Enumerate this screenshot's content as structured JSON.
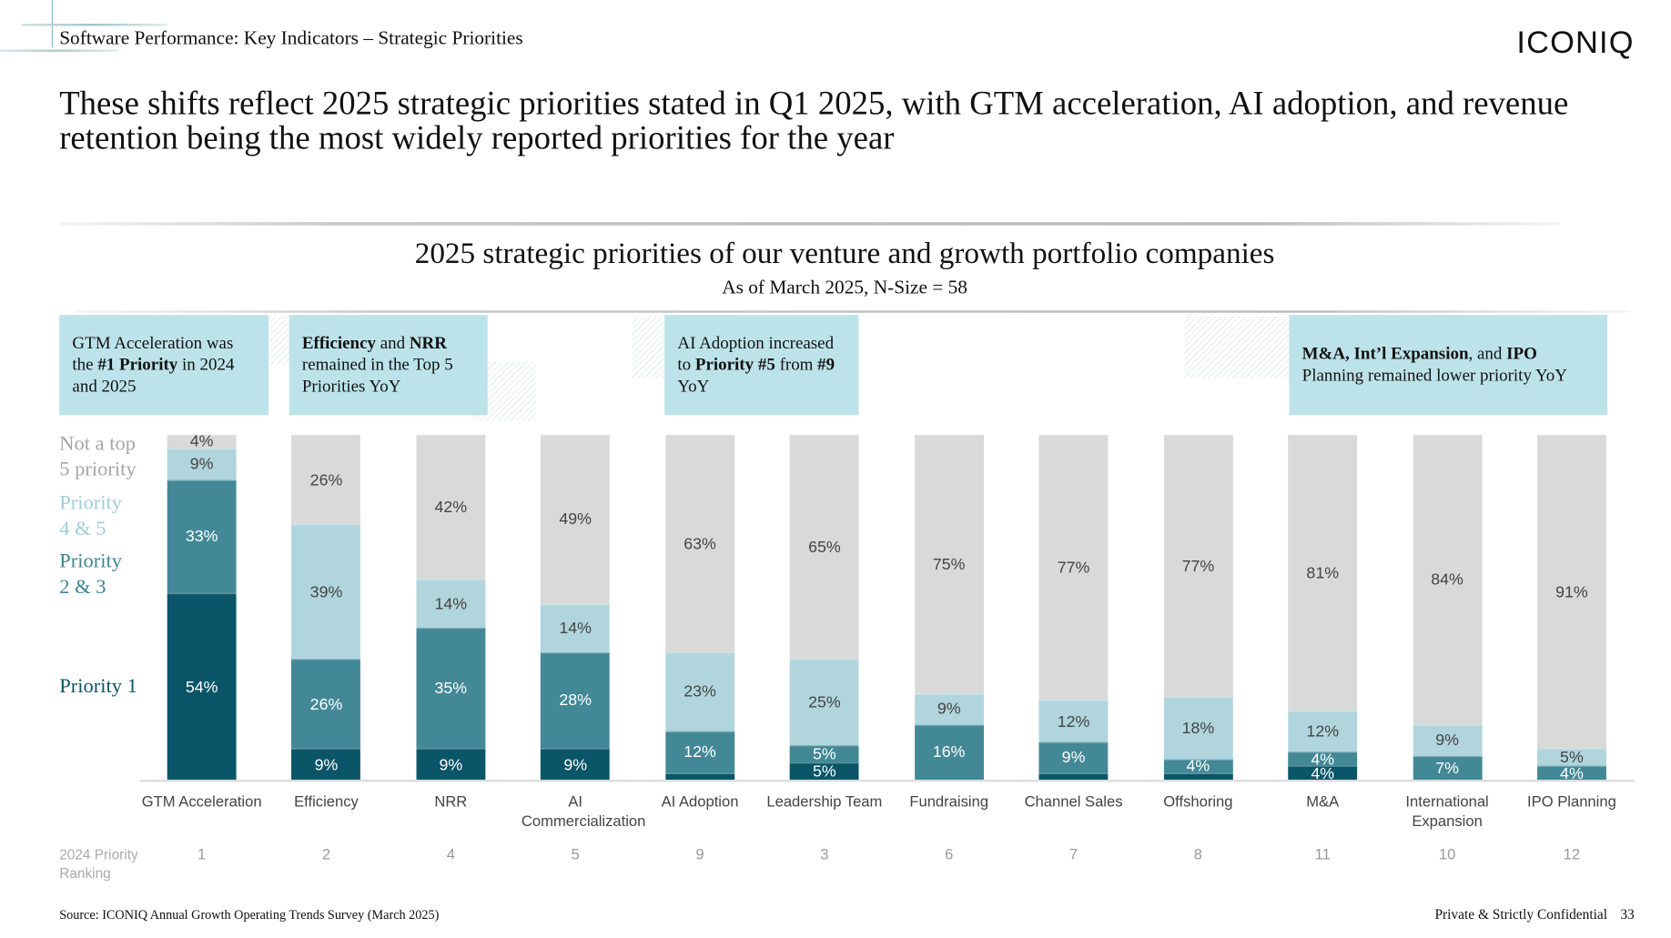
{
  "header": {
    "section": "Software Performance: Key Indicators – Strategic Priorities",
    "logo": "ICONIQ"
  },
  "headline": "These shifts reflect 2025 strategic priorities stated in Q1 2025, with GTM acceleration, AI adoption, and revenue retention being the most widely reported priorities for the year",
  "callouts": [
    {
      "html": "GTM Acceleration was the <b>#1 Priority</b> in 2024 and 2025"
    },
    {
      "html": "<b>Efficiency</b> and <b>NRR</b> remained in the Top 5 Priorities YoY"
    },
    {
      "html": "AI Adoption increased to <b>Priority #5</b> from <b>#9</b> YoY"
    },
    {
      "html": "<b>M&amp;A, Int’l Expansion</b>, and <b>IPO</b> Planning remained lower priority YoY"
    }
  ],
  "legend": {
    "not_top5": "Not a top 5 priority",
    "p45": "Priority 4 & 5",
    "p23": "Priority 2 & 3",
    "p1": "Priority 1"
  },
  "ranking_label": "2024 Priority Ranking",
  "footer": {
    "source": "Source: ICONIQ Annual Growth Operating Trends Survey (March 2025)",
    "confidential": "Private & Strictly Confidential",
    "page": "33"
  },
  "colors": {
    "p1": "#0a5567",
    "p23": "#438896",
    "p45": "#b0d5dc",
    "not_top5": "#d9d9d9",
    "callout": "#bde3ea"
  },
  "chart_data": {
    "type": "bar",
    "stacked": true,
    "title": "2025 strategic priorities of our venture and growth portfolio companies",
    "subtitle": "As of March 2025, N-Size = 58",
    "unit": "%",
    "ylim": [
      0,
      100
    ],
    "categories": [
      "GTM Acceleration",
      "Efficiency",
      "NRR",
      "AI Commercialization",
      "AI Adoption",
      "Leadership Team",
      "Fundraising",
      "Channel Sales",
      "Offshoring",
      "M&A",
      "International Expansion",
      "IPO Planning"
    ],
    "ranking_2024": [
      "1",
      "2",
      "4",
      "5",
      "9",
      "3",
      "6",
      "7",
      "8",
      "11",
      "10",
      "12"
    ],
    "series": [
      {
        "key": "p1",
        "name": "Priority 1",
        "values": [
          54,
          9,
          9,
          9,
          2,
          5,
          0,
          2,
          2,
          4,
          0,
          0
        ],
        "labels": [
          "54%",
          "9%",
          "9%",
          "9%",
          "",
          "5%",
          "",
          "",
          "",
          "4%",
          "",
          ""
        ]
      },
      {
        "key": "p23",
        "name": "Priority 2 & 3",
        "values": [
          33,
          26,
          35,
          28,
          12,
          5,
          16,
          9,
          4,
          4,
          7,
          4
        ],
        "labels": [
          "33%",
          "26%",
          "35%",
          "28%",
          "12%",
          "5%",
          "16%",
          "9%",
          "4%",
          "4%",
          "7%",
          "4%"
        ]
      },
      {
        "key": "p45",
        "name": "Priority 4 & 5",
        "values": [
          9,
          39,
          14,
          14,
          23,
          25,
          9,
          12,
          18,
          12,
          9,
          5
        ],
        "labels": [
          "9%",
          "39%",
          "14%",
          "14%",
          "23%",
          "25%",
          "9%",
          "12%",
          "18%",
          "12%",
          "9%",
          "5%"
        ]
      },
      {
        "key": "not_top5",
        "name": "Not a top 5 priority",
        "values": [
          4,
          26,
          42,
          49,
          63,
          65,
          75,
          77,
          77,
          81,
          84,
          91
        ],
        "labels": [
          "4%",
          "26%",
          "42%",
          "49%",
          "63%",
          "65%",
          "75%",
          "77%",
          "77%",
          "81%",
          "84%",
          "91%"
        ]
      }
    ]
  }
}
